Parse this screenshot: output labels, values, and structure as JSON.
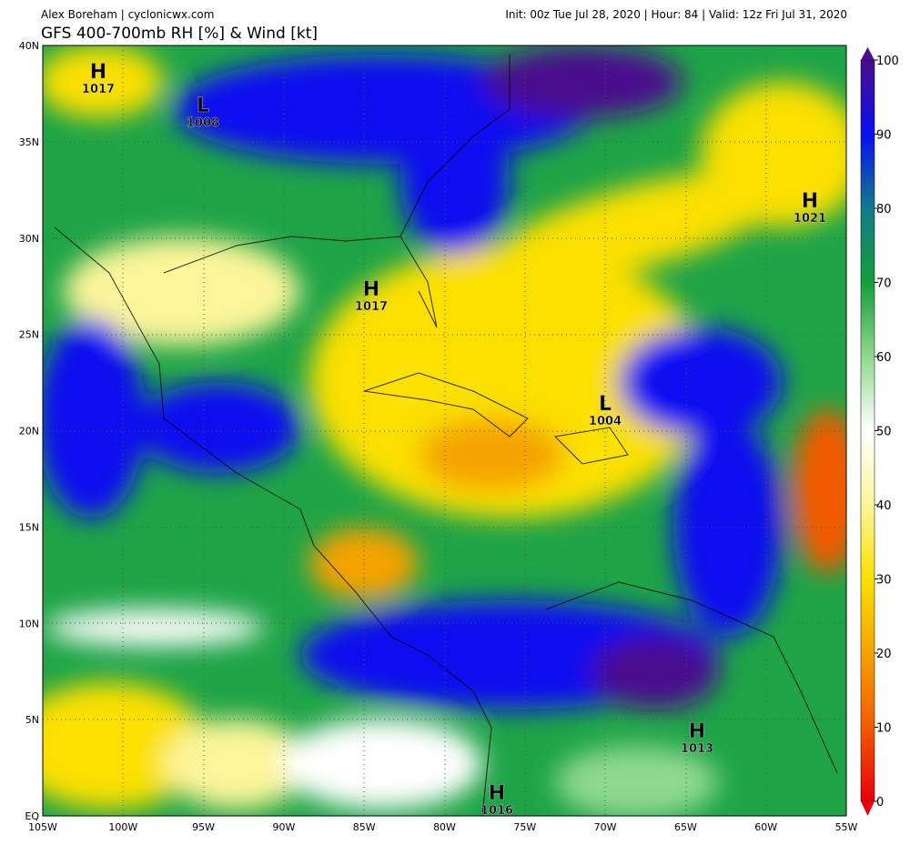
{
  "header": {
    "credit": "Alex Boreham | cyclonicwx.com",
    "run": "Init: 00z Tue Jul 28, 2020 | Hour: 84 | Valid: 12z Fri Jul 31, 2020"
  },
  "title": "GFS 400-700mb RH [%] & Wind [kt]",
  "map": {
    "lat_labels": [
      "40N",
      "35N",
      "30N",
      "25N",
      "20N",
      "15N",
      "10N",
      "5N",
      "EQ"
    ],
    "lon_labels": [
      "105W",
      "100W",
      "95W",
      "90W",
      "85W",
      "80W",
      "75W",
      "70W",
      "65W",
      "60W",
      "55W"
    ],
    "systems": [
      {
        "letter": "H",
        "pressure": "1017"
      },
      {
        "letter": "L",
        "pressure": "1008"
      },
      {
        "letter": "H",
        "pressure": "1021"
      },
      {
        "letter": "H",
        "pressure": "1017"
      },
      {
        "letter": "L",
        "pressure": "1004"
      },
      {
        "letter": "H",
        "pressure": "1013"
      },
      {
        "letter": "H",
        "pressure": "1016"
      }
    ]
  },
  "colorbar": {
    "range": [
      0,
      100
    ],
    "ticks": [
      0,
      10,
      20,
      30,
      40,
      50,
      60,
      70,
      80,
      90,
      100
    ]
  }
}
